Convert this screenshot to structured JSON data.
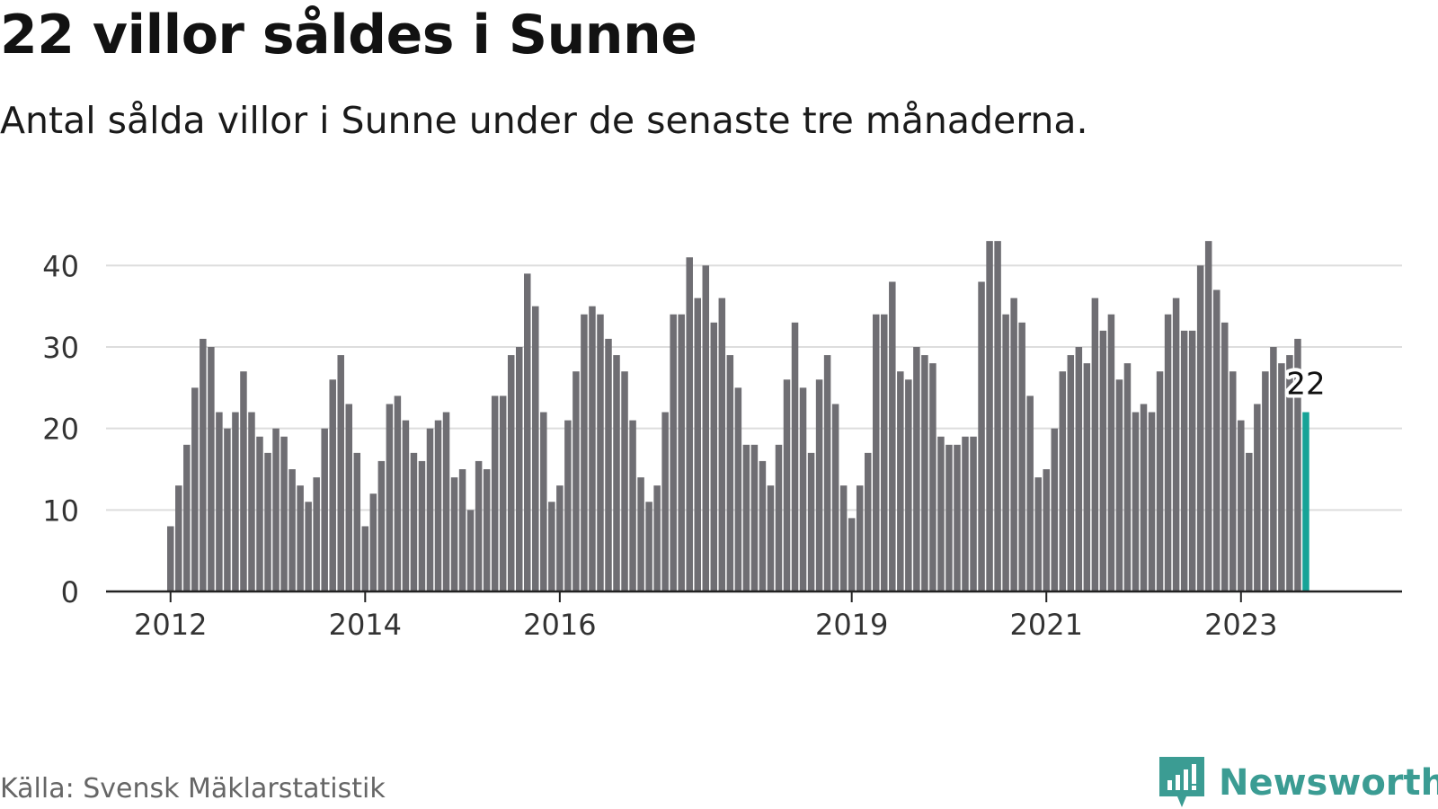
{
  "title": "22 villor såldes i Sunne",
  "subtitle": "Antal sålda villor i Sunne under de senaste tre månaderna.",
  "source": "Källa: Svensk Mäklarstatistik",
  "brand": {
    "name": "Newsworthy",
    "icon": "newsworthy-logo-icon",
    "color": "#3b9c93"
  },
  "chart_data": {
    "type": "bar",
    "title": "22 villor såldes i Sunne",
    "subtitle": "Antal sålda villor i Sunne under de senaste tre månaderna.",
    "xlabel": "",
    "ylabel": "",
    "ylim": [
      0,
      45
    ],
    "yticks": [
      0,
      10,
      20,
      30,
      40
    ],
    "grid": true,
    "legend": "none",
    "bar_color": "#6f6e73",
    "highlight_color": "#17a397",
    "x_tick_labels": [
      {
        "label": "2012",
        "at": "2012-01"
      },
      {
        "label": "2014",
        "at": "2014-01"
      },
      {
        "label": "2016",
        "at": "2016-01"
      },
      {
        "label": "2019",
        "at": "2019-01"
      },
      {
        "label": "2021",
        "at": "2021-01"
      },
      {
        "label": "2023",
        "at": "2023-01"
      }
    ],
    "annotation": {
      "text": "22",
      "at": "2023-09"
    },
    "x": [
      "2012-01",
      "2012-02",
      "2012-03",
      "2012-04",
      "2012-05",
      "2012-06",
      "2012-07",
      "2012-08",
      "2012-09",
      "2012-10",
      "2012-11",
      "2012-12",
      "2013-01",
      "2013-02",
      "2013-03",
      "2013-04",
      "2013-05",
      "2013-06",
      "2013-07",
      "2013-08",
      "2013-09",
      "2013-10",
      "2013-11",
      "2013-12",
      "2014-01",
      "2014-02",
      "2014-03",
      "2014-04",
      "2014-05",
      "2014-06",
      "2014-07",
      "2014-08",
      "2014-09",
      "2014-10",
      "2014-11",
      "2014-12",
      "2015-01",
      "2015-02",
      "2015-03",
      "2015-04",
      "2015-05",
      "2015-06",
      "2015-07",
      "2015-08",
      "2015-09",
      "2015-10",
      "2015-11",
      "2015-12",
      "2016-01",
      "2016-02",
      "2016-03",
      "2016-04",
      "2016-05",
      "2016-06",
      "2016-07",
      "2016-08",
      "2016-09",
      "2016-10",
      "2016-11",
      "2016-12",
      "2017-01",
      "2017-02",
      "2017-03",
      "2017-04",
      "2017-05",
      "2017-06",
      "2017-07",
      "2017-08",
      "2017-09",
      "2017-10",
      "2017-11",
      "2017-12",
      "2018-01",
      "2018-02",
      "2018-03",
      "2018-04",
      "2018-05",
      "2018-06",
      "2018-07",
      "2018-08",
      "2018-09",
      "2018-10",
      "2018-11",
      "2018-12",
      "2019-01",
      "2019-02",
      "2019-03",
      "2019-04",
      "2019-05",
      "2019-06",
      "2019-07",
      "2019-08",
      "2019-09",
      "2019-10",
      "2019-11",
      "2019-12",
      "2020-01",
      "2020-02",
      "2020-03",
      "2020-04",
      "2020-05",
      "2020-06",
      "2020-07",
      "2020-08",
      "2020-09",
      "2020-10",
      "2020-11",
      "2020-12",
      "2021-01",
      "2021-02",
      "2021-03",
      "2021-04",
      "2021-05",
      "2021-06",
      "2021-07",
      "2021-08",
      "2021-09",
      "2021-10",
      "2021-11",
      "2021-12",
      "2022-01",
      "2022-02",
      "2022-03",
      "2022-04",
      "2022-05",
      "2022-06",
      "2022-07",
      "2022-08",
      "2022-09",
      "2022-10",
      "2022-11",
      "2022-12",
      "2023-01",
      "2023-02",
      "2023-03",
      "2023-04",
      "2023-05",
      "2023-06",
      "2023-07",
      "2023-08",
      "2023-09"
    ],
    "values": [
      8,
      13,
      18,
      25,
      31,
      30,
      22,
      20,
      22,
      27,
      22,
      19,
      17,
      20,
      19,
      15,
      13,
      11,
      14,
      20,
      26,
      29,
      23,
      17,
      8,
      12,
      16,
      23,
      24,
      21,
      17,
      16,
      20,
      21,
      22,
      14,
      15,
      10,
      16,
      15,
      24,
      24,
      29,
      30,
      39,
      35,
      22,
      11,
      13,
      21,
      27,
      34,
      35,
      34,
      31,
      29,
      27,
      21,
      14,
      11,
      13,
      22,
      34,
      34,
      41,
      36,
      40,
      33,
      36,
      29,
      25,
      18,
      18,
      16,
      13,
      18,
      26,
      33,
      25,
      17,
      26,
      29,
      23,
      13,
      9,
      13,
      17,
      34,
      34,
      38,
      27,
      26,
      30,
      29,
      28,
      19,
      18,
      18,
      19,
      19,
      38,
      43,
      43,
      34,
      36,
      33,
      24,
      14,
      15,
      20,
      27,
      29,
      30,
      28,
      36,
      32,
      34,
      26,
      28,
      22,
      23,
      22,
      27,
      34,
      36,
      32,
      32,
      40,
      43,
      37,
      33,
      27,
      21,
      17,
      23,
      27,
      30,
      28,
      29,
      31,
      22
    ]
  }
}
